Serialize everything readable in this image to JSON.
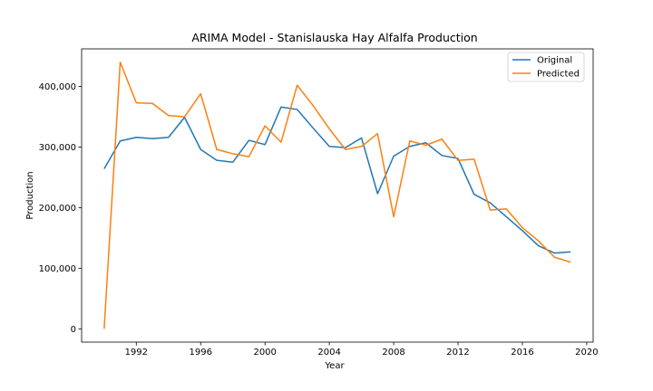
{
  "chart_data": {
    "type": "line",
    "title": "ARIMA Model - Stanislauska Hay Alfalfa Production",
    "xlabel": "Year",
    "ylabel": "Production",
    "xlim": [
      1988.6,
      2020.4
    ],
    "ylim": [
      -22000,
      462000
    ],
    "xticks": [
      1992,
      1996,
      2000,
      2004,
      2008,
      2012,
      2016,
      2020
    ],
    "xtick_labels": [
      "1992",
      "1996",
      "2000",
      "2004",
      "2008",
      "2012",
      "2016",
      "2020"
    ],
    "yticks": [
      0,
      100000,
      200000,
      300000,
      400000
    ],
    "ytick_labels": [
      "0",
      "100,000",
      "200,000",
      "300,000",
      "400,000"
    ],
    "legend_position": "top-right",
    "x": [
      1990,
      1991,
      1992,
      1993,
      1994,
      1995,
      1996,
      1997,
      1998,
      1999,
      2000,
      2001,
      2002,
      2003,
      2004,
      2005,
      2006,
      2007,
      2008,
      2009,
      2010,
      2011,
      2012,
      2013,
      2014,
      2015,
      2016,
      2017,
      2018,
      2019
    ],
    "series": [
      {
        "name": "Original",
        "color": "#1f77b4",
        "values": [
          264000,
          310000,
          316000,
          314000,
          316000,
          349000,
          296000,
          278000,
          275000,
          311000,
          304000,
          366000,
          362000,
          331000,
          301000,
          299000,
          315000,
          223000,
          285000,
          301000,
          307000,
          286000,
          281000,
          222000,
          208000,
          185000,
          162000,
          137000,
          125000,
          127000
        ]
      },
      {
        "name": "Predicted",
        "color": "#ff7f0e",
        "values": [
          0,
          440000,
          373000,
          372000,
          352000,
          350000,
          388000,
          296000,
          289000,
          284000,
          335000,
          308000,
          402000,
          368000,
          330000,
          296000,
          301000,
          322000,
          185000,
          310000,
          303000,
          313000,
          278000,
          280000,
          196000,
          198000,
          167000,
          145000,
          118000,
          110000
        ]
      }
    ]
  }
}
